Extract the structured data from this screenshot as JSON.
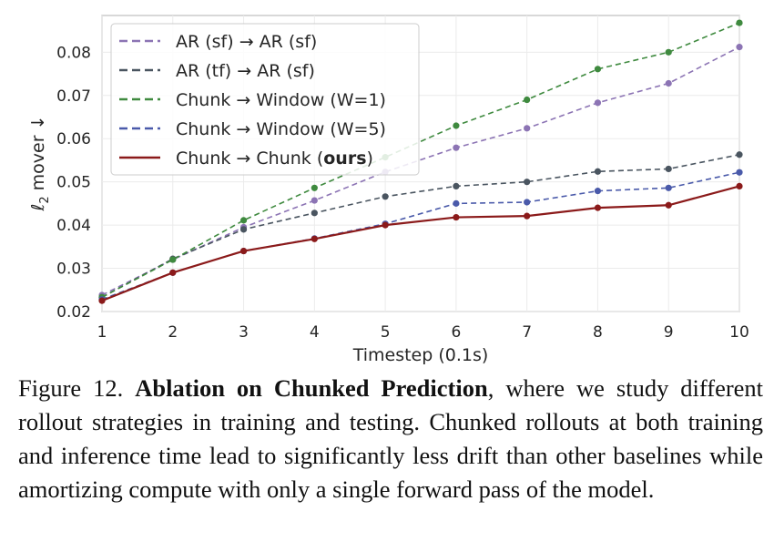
{
  "chart_data": {
    "type": "line",
    "xlabel": "Timestep (0.1s)",
    "ylabel_main": "ℓ",
    "ylabel_sub": "2",
    "ylabel_rest": " mover ↓",
    "x": [
      1,
      2,
      3,
      4,
      5,
      6,
      7,
      8,
      9,
      10
    ],
    "xlim": [
      1,
      10
    ],
    "ylim": [
      0.02,
      0.0885
    ],
    "yticks": [
      0.02,
      0.03,
      0.04,
      0.05,
      0.06,
      0.07,
      0.08
    ],
    "grid": true,
    "legend_position": "upper-left",
    "series": [
      {
        "name": "AR (sf) → AR (sf)",
        "color": "#8c74b4",
        "style": "dashed",
        "values": [
          0.0238,
          0.032,
          0.0395,
          0.0457,
          0.0523,
          0.0579,
          0.0624,
          0.0683,
          0.0728,
          0.0812
        ]
      },
      {
        "name": "AR (tf) → AR (sf)",
        "color": "#4a5560",
        "style": "dashed",
        "values": [
          0.0233,
          0.0322,
          0.039,
          0.0428,
          0.0466,
          0.049,
          0.05,
          0.0524,
          0.053,
          0.0563
        ]
      },
      {
        "name": "Chunk → Window (W=1)",
        "color": "#3f8a3f",
        "style": "dashed",
        "values": [
          0.0233,
          0.032,
          0.0411,
          0.0486,
          0.0557,
          0.063,
          0.069,
          0.0761,
          0.08,
          0.0868
        ]
      },
      {
        "name": "Chunk → Window (W=5)",
        "color": "#4a5aaa",
        "style": "dashed",
        "values": [
          0.0228,
          0.029,
          0.034,
          0.0369,
          0.0403,
          0.045,
          0.0453,
          0.0479,
          0.0486,
          0.0522
        ]
      },
      {
        "name_prefix": "Chunk → Chunk (",
        "name_bold": "ours",
        "name_suffix": ")",
        "color": "#8b1a1a",
        "style": "solid",
        "values": [
          0.0225,
          0.029,
          0.034,
          0.0368,
          0.04,
          0.0418,
          0.0421,
          0.044,
          0.0446,
          0.049
        ]
      }
    ]
  },
  "caption": {
    "label": "Figure 12.",
    "title": "Ablation on Chunked Prediction",
    "text": ", where we study different rollout strategies in training and testing. Chunked rollouts at both training and inference time lead to significantly less drift than other baselines while amortizing compute with only a single forward pass of the model."
  }
}
